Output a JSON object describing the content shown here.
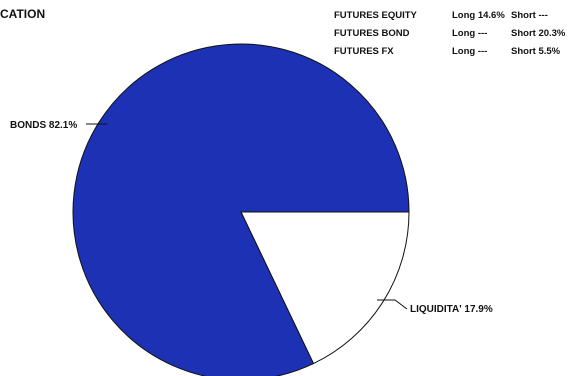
{
  "chart_data": {
    "type": "pie",
    "title": "CATION",
    "slices": [
      {
        "label": "BONDS",
        "value": 82.1,
        "display": "BONDS 82.1%",
        "color": "#1c31b4"
      },
      {
        "label": "LIQUIDITA'",
        "value": 17.9,
        "display": "LIQUIDITA' 17.9%",
        "color": "#ffffff"
      }
    ],
    "futures_table": [
      {
        "name": "FUTURES EQUITY",
        "long": "Long 14.6%",
        "short": "Short ---"
      },
      {
        "name": "FUTURES BOND",
        "long": "Long ---",
        "short": "Short 20.3%"
      },
      {
        "name": "FUTURES FX",
        "long": "Long ---",
        "short": "Short 5.5%"
      }
    ]
  }
}
